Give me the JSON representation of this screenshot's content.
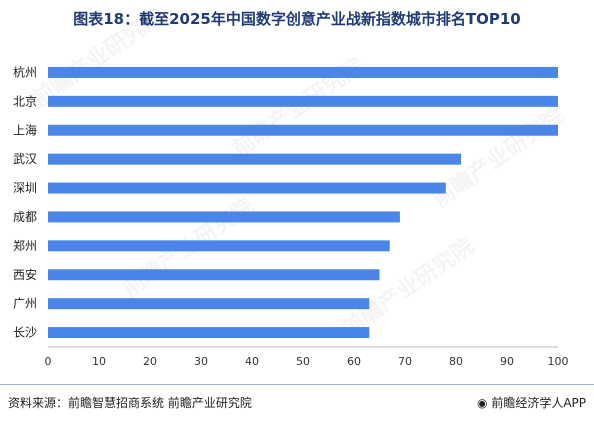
{
  "title": "图表18：截至2025年中国数字创意产业战新指数城市排名TOP10",
  "source": "资料来源：前瞻智慧招商系统 前瞻产业研究院",
  "credit": "前瞻经济学人APP",
  "credit_icon": "qianzhan-logo-icon",
  "watermark": "前瞻产业研究院",
  "colors": {
    "bar": "#4a86e8",
    "title": "#1f3b73"
  },
  "chart_data": {
    "type": "bar",
    "orientation": "horizontal",
    "categories": [
      "杭州",
      "北京",
      "上海",
      "武汉",
      "深圳",
      "成都",
      "郑州",
      "西安",
      "广州",
      "长沙"
    ],
    "values": [
      100,
      100,
      100,
      81,
      78,
      69,
      67,
      65,
      63,
      63
    ],
    "xlim": [
      0,
      100
    ],
    "xticks": [
      0,
      10,
      20,
      30,
      40,
      50,
      60,
      70,
      80,
      90,
      100
    ],
    "title": "",
    "xlabel": "",
    "ylabel": "",
    "grid": false,
    "legend": "none"
  }
}
